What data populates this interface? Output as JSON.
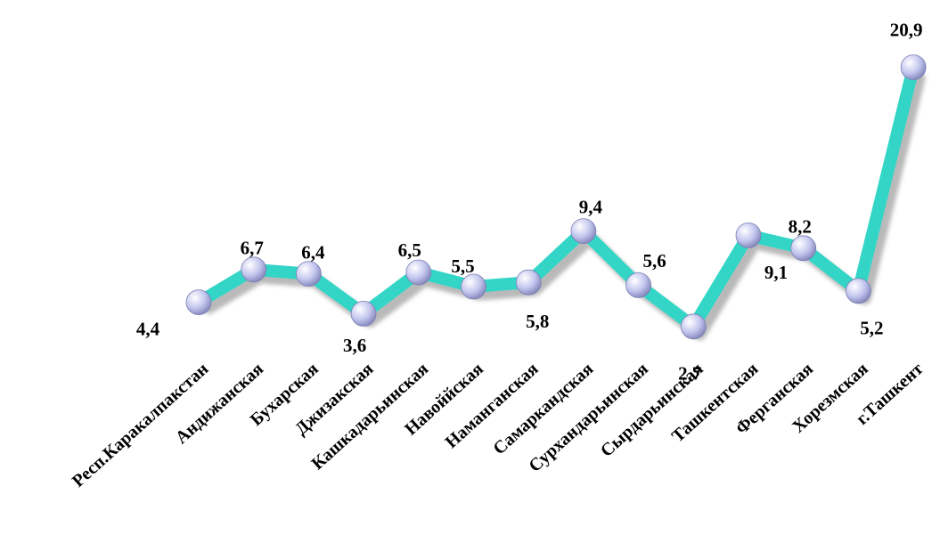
{
  "chart_data": {
    "type": "line",
    "title": "",
    "xlabel": "",
    "ylabel": "",
    "categories": [
      "Респ.Каракалпакстан",
      "Андижанская",
      "Бухарская",
      "Джизакская",
      "Кашкадарьинская",
      "Навоййская",
      "Наманганская",
      "Самаркандская",
      "Сурхандарьинская",
      "Сырдарьинская",
      "Ташкентская",
      "Ферганская",
      "Хорезмская",
      "г.Ташкент"
    ],
    "series": [
      {
        "values": [
          4.4,
          6.7,
          6.4,
          3.6,
          6.5,
          5.5,
          5.8,
          9.4,
          5.6,
          2.7,
          9.1,
          8.2,
          5.2,
          20.9
        ],
        "labels": [
          "4,4",
          "6,7",
          "6,4",
          "3,6",
          "6,5",
          "5,5",
          "5,8",
          "9,4",
          "5,6",
          "2,7",
          "9,1",
          "8,2",
          "5,2",
          "20,9"
        ]
      }
    ],
    "grid": false,
    "legend": "none",
    "colors": {
      "line": "#33d6c6",
      "shadow": "#7f7f7f",
      "marker": "#c3c6ee",
      "marker_highlight": "#ffffff",
      "marker_edge": "#7c80b5"
    }
  }
}
